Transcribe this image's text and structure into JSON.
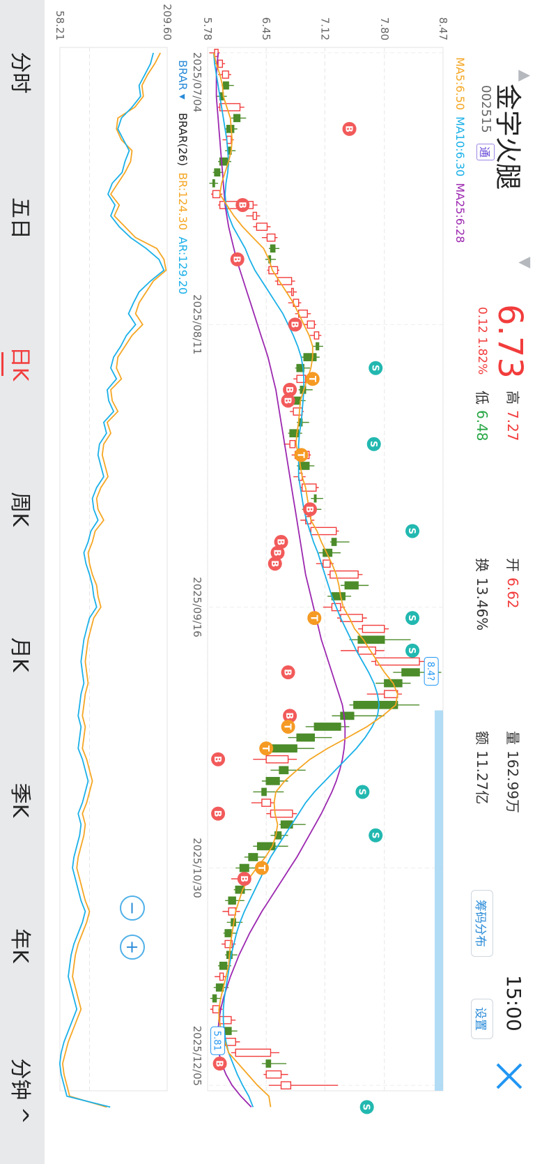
{
  "header": {
    "stock_name": "金字火腿",
    "stock_code": "002515",
    "tong_badge": "通",
    "price": "6.73",
    "change": "0.12 1.82%",
    "high_label": "高",
    "high_value": "7.27",
    "low_label": "低",
    "low_value": "6.48",
    "open_label": "开",
    "open_value": "6.62",
    "turnover_label": "换",
    "turnover_value": "13.46%",
    "volume_label": "量",
    "volume_value": "162.99万",
    "amount_label": "额",
    "amount_value": "11.27亿",
    "time": "15:00",
    "chip_button": "筹码分布",
    "settings_button": "设置"
  },
  "main_chart": {
    "ma_legend": {
      "ma5": "MA5:6.50",
      "ma10": "MA10:6.30",
      "ma25": "MA25:6.28"
    },
    "y_ticks": [
      "8.47",
      "7.80",
      "7.12",
      "6.45",
      "5.78"
    ],
    "x_ticks": [
      "2025/07/04",
      "2025/08/11",
      "2025/09/16",
      "2025/10/30",
      "2025/12/05"
    ],
    "max_marker": "8.4?",
    "min_marker": "5.81"
  },
  "indicator": {
    "select_label": "BRAR",
    "name": "BRAR(26)",
    "br": "BR:124.30",
    "ar": "AR:129.20",
    "y_max": "209.60",
    "y_min": "58.21"
  },
  "colors": {
    "up": "#f23c3c",
    "down": "#4c8c2a",
    "ma5": "#f5a623",
    "ma10": "#1ab0e8",
    "ma25": "#9c27b0",
    "br": "#f5a623",
    "ar": "#1ab0e8",
    "accent": "#2196f3"
  },
  "tabs": [
    {
      "label": "分时",
      "active": false
    },
    {
      "label": "五日",
      "active": false
    },
    {
      "label": "日K",
      "active": true
    },
    {
      "label": "周K",
      "active": false
    },
    {
      "label": "月K",
      "active": false
    },
    {
      "label": "季K",
      "active": false
    },
    {
      "label": "年K",
      "active": false
    },
    {
      "label": "分钟 ^",
      "active": false
    }
  ],
  "chart_data": {
    "type": "candlestick",
    "title": "",
    "x_range": [
      "2025/07/04",
      "2025/12/05"
    ],
    "ylim": [
      5.78,
      8.47
    ],
    "candles": [
      {
        "o": 5.86,
        "h": 5.92,
        "l": 5.8,
        "c": 5.9
      },
      {
        "o": 5.9,
        "h": 5.98,
        "l": 5.86,
        "c": 5.95
      },
      {
        "o": 5.95,
        "h": 6.05,
        "l": 5.9,
        "c": 6.02
      },
      {
        "o": 6.02,
        "h": 6.08,
        "l": 5.94,
        "c": 5.96
      },
      {
        "o": 5.96,
        "h": 6.0,
        "l": 5.88,
        "c": 5.92
      },
      {
        "o": 5.92,
        "h": 6.2,
        "l": 5.9,
        "c": 6.15
      },
      {
        "o": 6.15,
        "h": 6.22,
        "l": 6.05,
        "c": 6.08
      },
      {
        "o": 6.08,
        "h": 6.12,
        "l": 5.98,
        "c": 6.0
      },
      {
        "o": 6.0,
        "h": 6.08,
        "l": 5.95,
        "c": 6.05
      },
      {
        "o": 6.05,
        "h": 6.1,
        "l": 5.98,
        "c": 6.02
      },
      {
        "o": 6.02,
        "h": 6.05,
        "l": 5.9,
        "c": 5.92
      },
      {
        "o": 5.92,
        "h": 5.96,
        "l": 5.84,
        "c": 5.86
      },
      {
        "o": 5.86,
        "h": 5.9,
        "l": 5.8,
        "c": 5.84
      },
      {
        "o": 5.84,
        "h": 5.95,
        "l": 5.82,
        "c": 5.92
      },
      {
        "o": 5.92,
        "h": 6.35,
        "l": 5.9,
        "c": 6.3
      },
      {
        "o": 6.3,
        "h": 6.38,
        "l": 6.22,
        "c": 6.34
      },
      {
        "o": 6.34,
        "h": 6.5,
        "l": 6.3,
        "c": 6.46
      },
      {
        "o": 6.46,
        "h": 6.58,
        "l": 6.4,
        "c": 6.55
      },
      {
        "o": 6.55,
        "h": 6.6,
        "l": 6.48,
        "c": 6.5
      },
      {
        "o": 6.5,
        "h": 6.56,
        "l": 6.44,
        "c": 6.48
      },
      {
        "o": 6.48,
        "h": 6.6,
        "l": 6.46,
        "c": 6.58
      },
      {
        "o": 6.58,
        "h": 6.78,
        "l": 6.55,
        "c": 6.74
      },
      {
        "o": 6.74,
        "h": 6.8,
        "l": 6.68,
        "c": 6.76
      },
      {
        "o": 6.76,
        "h": 6.85,
        "l": 6.7,
        "c": 6.82
      },
      {
        "o": 6.82,
        "h": 6.96,
        "l": 6.78,
        "c": 6.92
      },
      {
        "o": 6.92,
        "h": 7.02,
        "l": 6.88,
        "c": 7.0
      },
      {
        "o": 7.0,
        "h": 7.08,
        "l": 6.95,
        "c": 7.05
      },
      {
        "o": 7.05,
        "h": 7.1,
        "l": 6.98,
        "c": 7.02
      },
      {
        "o": 7.02,
        "h": 7.06,
        "l": 6.85,
        "c": 6.88
      },
      {
        "o": 6.88,
        "h": 6.95,
        "l": 6.78,
        "c": 6.8
      },
      {
        "o": 6.8,
        "h": 6.92,
        "l": 6.76,
        "c": 6.9
      },
      {
        "o": 6.9,
        "h": 6.98,
        "l": 6.82,
        "c": 6.84
      },
      {
        "o": 6.84,
        "h": 6.9,
        "l": 6.74,
        "c": 6.76
      },
      {
        "o": 6.76,
        "h": 6.88,
        "l": 6.72,
        "c": 6.86
      },
      {
        "o": 6.86,
        "h": 6.94,
        "l": 6.8,
        "c": 6.82
      },
      {
        "o": 6.82,
        "h": 6.86,
        "l": 6.7,
        "c": 6.72
      },
      {
        "o": 6.72,
        "h": 6.8,
        "l": 6.65,
        "c": 6.78
      },
      {
        "o": 6.78,
        "h": 6.96,
        "l": 6.74,
        "c": 6.94
      },
      {
        "o": 6.94,
        "h": 7.0,
        "l": 6.8,
        "c": 6.82
      },
      {
        "o": 6.82,
        "h": 6.9,
        "l": 6.76,
        "c": 6.86
      },
      {
        "o": 6.86,
        "h": 7.05,
        "l": 6.84,
        "c": 7.02
      },
      {
        "o": 7.02,
        "h": 7.1,
        "l": 6.96,
        "c": 7.0
      },
      {
        "o": 7.0,
        "h": 7.08,
        "l": 6.86,
        "c": 6.9
      },
      {
        "o": 6.9,
        "h": 7.0,
        "l": 6.84,
        "c": 6.96
      },
      {
        "o": 6.96,
        "h": 7.28,
        "l": 6.94,
        "c": 7.25
      },
      {
        "o": 7.25,
        "h": 7.4,
        "l": 7.18,
        "c": 7.2
      },
      {
        "o": 7.2,
        "h": 7.3,
        "l": 7.05,
        "c": 7.1
      },
      {
        "o": 7.1,
        "h": 7.22,
        "l": 7.02,
        "c": 7.18
      },
      {
        "o": 7.18,
        "h": 7.55,
        "l": 7.15,
        "c": 7.5
      },
      {
        "o": 7.5,
        "h": 7.62,
        "l": 7.3,
        "c": 7.35
      },
      {
        "o": 7.35,
        "h": 7.42,
        "l": 7.15,
        "c": 7.2
      },
      {
        "o": 7.2,
        "h": 7.35,
        "l": 7.1,
        "c": 7.3
      },
      {
        "o": 7.3,
        "h": 7.6,
        "l": 7.26,
        "c": 7.55
      },
      {
        "o": 7.55,
        "h": 7.85,
        "l": 7.5,
        "c": 7.8
      },
      {
        "o": 7.8,
        "h": 8.1,
        "l": 7.4,
        "c": 7.5
      },
      {
        "o": 7.5,
        "h": 7.8,
        "l": 7.3,
        "c": 7.7
      },
      {
        "o": 7.7,
        "h": 8.3,
        "l": 7.65,
        "c": 8.2
      },
      {
        "o": 8.2,
        "h": 8.45,
        "l": 7.9,
        "c": 8.0
      },
      {
        "o": 8.0,
        "h": 8.1,
        "l": 7.7,
        "c": 7.8
      },
      {
        "o": 7.8,
        "h": 8.0,
        "l": 7.6,
        "c": 7.95
      },
      {
        "o": 7.95,
        "h": 8.2,
        "l": 7.4,
        "c": 7.45
      },
      {
        "o": 7.45,
        "h": 7.8,
        "l": 7.2,
        "c": 7.3
      },
      {
        "o": 7.3,
        "h": 7.4,
        "l": 6.9,
        "c": 7.0
      },
      {
        "o": 7.0,
        "h": 7.2,
        "l": 6.7,
        "c": 6.8
      },
      {
        "o": 6.8,
        "h": 7.0,
        "l": 6.4,
        "c": 6.45
      },
      {
        "o": 6.45,
        "h": 6.8,
        "l": 6.3,
        "c": 6.7
      },
      {
        "o": 6.7,
        "h": 6.9,
        "l": 6.5,
        "c": 6.6
      },
      {
        "o": 6.6,
        "h": 6.7,
        "l": 6.4,
        "c": 6.45
      },
      {
        "o": 6.45,
        "h": 6.65,
        "l": 6.3,
        "c": 6.4
      },
      {
        "o": 6.4,
        "h": 6.55,
        "l": 6.28,
        "c": 6.5
      },
      {
        "o": 6.5,
        "h": 6.8,
        "l": 6.45,
        "c": 6.75
      },
      {
        "o": 6.75,
        "h": 6.9,
        "l": 6.6,
        "c": 6.62
      },
      {
        "o": 6.62,
        "h": 6.7,
        "l": 6.5,
        "c": 6.55
      },
      {
        "o": 6.55,
        "h": 6.7,
        "l": 6.3,
        "c": 6.35
      },
      {
        "o": 6.35,
        "h": 6.45,
        "l": 6.2,
        "c": 6.25
      },
      {
        "o": 6.25,
        "h": 6.35,
        "l": 6.1,
        "c": 6.15
      },
      {
        "o": 6.15,
        "h": 6.25,
        "l": 6.05,
        "c": 6.2
      },
      {
        "o": 6.2,
        "h": 6.28,
        "l": 6.08,
        "c": 6.1
      },
      {
        "o": 6.1,
        "h": 6.2,
        "l": 5.98,
        "c": 6.02
      },
      {
        "o": 6.02,
        "h": 6.15,
        "l": 5.95,
        "c": 6.1
      },
      {
        "o": 6.1,
        "h": 6.18,
        "l": 6.0,
        "c": 6.05
      },
      {
        "o": 6.05,
        "h": 6.12,
        "l": 5.96,
        "c": 5.98
      },
      {
        "o": 5.98,
        "h": 6.1,
        "l": 5.94,
        "c": 6.06
      },
      {
        "o": 6.06,
        "h": 6.12,
        "l": 5.98,
        "c": 6.0
      },
      {
        "o": 6.0,
        "h": 6.05,
        "l": 5.9,
        "c": 5.92
      },
      {
        "o": 5.92,
        "h": 6.0,
        "l": 5.86,
        "c": 5.96
      },
      {
        "o": 5.96,
        "h": 6.02,
        "l": 5.85,
        "c": 5.88
      },
      {
        "o": 5.88,
        "h": 5.94,
        "l": 5.81,
        "c": 5.84
      },
      {
        "o": 5.84,
        "h": 5.95,
        "l": 5.81,
        "c": 5.92
      },
      {
        "o": 5.92,
        "h": 6.1,
        "l": 5.9,
        "c": 6.05
      },
      {
        "o": 6.05,
        "h": 6.12,
        "l": 5.96,
        "c": 5.98
      },
      {
        "o": 5.98,
        "h": 6.15,
        "l": 5.95,
        "c": 6.1
      },
      {
        "o": 6.1,
        "h": 6.6,
        "l": 6.05,
        "c": 6.5
      },
      {
        "o": 6.5,
        "h": 6.68,
        "l": 6.4,
        "c": 6.45
      },
      {
        "o": 6.45,
        "h": 6.7,
        "l": 6.42,
        "c": 6.62
      },
      {
        "o": 6.62,
        "h": 7.27,
        "l": 6.48,
        "c": 6.73
      }
    ],
    "ma5": [
      5.85,
      5.88,
      5.92,
      5.95,
      5.96,
      6.0,
      6.04,
      6.05,
      6.06,
      6.05,
      6.02,
      5.98,
      5.94,
      5.92,
      6.0,
      6.08,
      6.18,
      6.3,
      6.42,
      6.48,
      6.52,
      6.6,
      6.68,
      6.76,
      6.82,
      6.88,
      6.94,
      6.98,
      6.98,
      6.96,
      6.92,
      6.88,
      6.84,
      6.83,
      6.82,
      6.8,
      6.79,
      6.82,
      6.84,
      6.86,
      6.9,
      6.92,
      6.94,
      6.96,
      7.03,
      7.08,
      7.14,
      7.2,
      7.25,
      7.28,
      7.3,
      7.33,
      7.4,
      7.46,
      7.56,
      7.64,
      7.72,
      7.8,
      7.9,
      7.95,
      7.93,
      7.78,
      7.6,
      7.38,
      7.15,
      6.95,
      6.8,
      6.66,
      6.56,
      6.54,
      6.55,
      6.58,
      6.56,
      6.52,
      6.44,
      6.34,
      6.25,
      6.18,
      6.14,
      6.1,
      6.08,
      6.06,
      6.04,
      6.03,
      6.02,
      5.99,
      5.96,
      5.93,
      5.91,
      5.91,
      5.94,
      5.98,
      6.02,
      6.13,
      6.24,
      6.35,
      6.48,
      6.5
    ],
    "ma10": [
      5.85,
      5.86,
      5.88,
      5.9,
      5.92,
      5.94,
      5.96,
      5.98,
      6.0,
      6.01,
      6.02,
      6.01,
      5.99,
      5.98,
      5.99,
      6.02,
      6.07,
      6.14,
      6.21,
      6.26,
      6.32,
      6.4,
      6.48,
      6.56,
      6.64,
      6.7,
      6.76,
      6.81,
      6.85,
      6.87,
      6.88,
      6.88,
      6.87,
      6.86,
      6.85,
      6.83,
      6.82,
      6.82,
      6.82,
      6.82,
      6.84,
      6.86,
      6.88,
      6.91,
      6.95,
      6.99,
      7.04,
      7.08,
      7.12,
      7.16,
      7.2,
      7.25,
      7.3,
      7.36,
      7.42,
      7.48,
      7.55,
      7.62,
      7.68,
      7.72,
      7.74,
      7.72,
      7.66,
      7.58,
      7.48,
      7.36,
      7.24,
      7.12,
      7.0,
      6.9,
      6.82,
      6.74,
      6.66,
      6.58,
      6.5,
      6.44,
      6.38,
      6.32,
      6.26,
      6.2,
      6.15,
      6.11,
      6.08,
      6.05,
      6.03,
      6.01,
      5.99,
      5.97,
      5.96,
      5.96,
      5.97,
      5.99,
      6.02,
      6.07,
      6.12,
      6.18,
      6.25,
      6.3
    ],
    "ma25": [
      5.9,
      5.89,
      5.88,
      5.88,
      5.88,
      5.89,
      5.9,
      5.91,
      5.92,
      5.93,
      5.94,
      5.95,
      5.96,
      5.97,
      5.98,
      6.0,
      6.02,
      6.05,
      6.08,
      6.11,
      6.15,
      6.19,
      6.23,
      6.27,
      6.31,
      6.35,
      6.39,
      6.43,
      6.47,
      6.5,
      6.53,
      6.56,
      6.58,
      6.6,
      6.62,
      6.64,
      6.66,
      6.68,
      6.7,
      6.72,
      6.74,
      6.76,
      6.78,
      6.8,
      6.82,
      6.84,
      6.86,
      6.88,
      6.9,
      6.93,
      6.96,
      6.99,
      7.02,
      7.05,
      7.08,
      7.12,
      7.16,
      7.2,
      7.24,
      7.28,
      7.32,
      7.34,
      7.35,
      7.35,
      7.34,
      7.32,
      7.29,
      7.25,
      7.2,
      7.14,
      7.08,
      7.01,
      6.94,
      6.87,
      6.8,
      6.72,
      6.64,
      6.56,
      6.48,
      6.4,
      6.33,
      6.26,
      6.2,
      6.14,
      6.09,
      6.04,
      6.0,
      5.96,
      5.93,
      5.91,
      5.9,
      5.9,
      5.91,
      5.94,
      5.99,
      6.06,
      6.16,
      6.28
    ],
    "br": [
      200,
      192,
      182,
      174,
      176,
      164,
      140,
      138,
      145,
      160,
      158,
      150,
      140,
      130,
      142,
      135,
      150,
      165,
      195,
      205,
      208,
      190,
      180,
      170,
      165,
      175,
      160,
      150,
      140,
      138,
      145,
      130,
      132,
      140,
      125,
      130,
      120,
      118,
      122,
      126,
      116,
      110,
      112,
      120,
      108,
      104,
      98,
      100,
      104,
      110,
      112,
      116,
      106,
      102,
      98,
      96,
      94,
      96,
      98,
      94,
      92,
      90,
      94,
      92,
      90,
      96,
      100,
      104,
      100,
      96,
      90,
      94,
      92,
      88,
      84,
      82,
      86,
      90,
      94,
      100,
      96,
      90,
      84,
      80,
      78,
      76,
      80,
      84,
      88,
      82,
      76,
      70,
      66,
      62,
      64,
      68,
      72,
      124.3
    ],
    "ar": [
      190,
      186,
      178,
      170,
      172,
      160,
      145,
      140,
      148,
      156,
      150,
      146,
      132,
      126,
      136,
      130,
      142,
      158,
      180,
      198,
      205,
      186,
      170,
      162,
      155,
      165,
      152,
      144,
      134,
      130,
      138,
      125,
      127,
      134,
      120,
      124,
      114,
      112,
      116,
      120,
      110,
      104,
      106,
      112,
      102,
      98,
      92,
      95,
      100,
      104,
      106,
      110,
      100,
      96,
      92,
      90,
      88,
      90,
      92,
      88,
      86,
      84,
      88,
      86,
      84,
      90,
      94,
      98,
      94,
      90,
      84,
      88,
      86,
      82,
      78,
      76,
      80,
      84,
      88,
      94,
      90,
      84,
      78,
      74,
      72,
      70,
      74,
      78,
      82,
      76,
      70,
      64,
      60,
      58,
      60,
      64,
      68,
      129.2
    ]
  }
}
